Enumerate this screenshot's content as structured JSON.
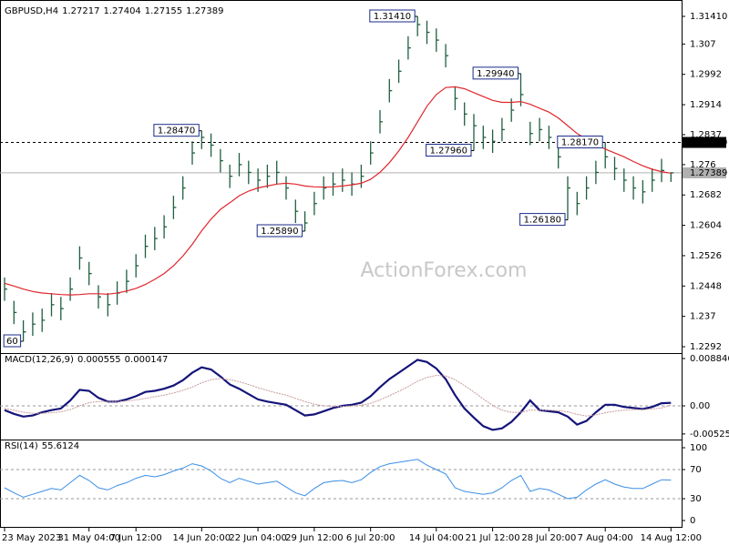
{
  "chart_data": [
    {
      "type": "ohlc",
      "title": "GBPUSD,H4",
      "header_values": [
        1.27217,
        1.27404,
        1.27155,
        1.27389
      ],
      "watermark": "ActionForex.com",
      "categories": [
        "23 May 2023",
        null,
        null,
        null,
        null,
        null,
        null,
        null,
        null,
        "31 May 04:00",
        null,
        null,
        null,
        null,
        "7 Jun 12:00",
        null,
        null,
        null,
        null,
        null,
        null,
        "14 Jun 20:00",
        null,
        null,
        null,
        null,
        null,
        "22 Jun 04:00",
        null,
        null,
        null,
        null,
        null,
        "29 Jun 12:00",
        null,
        null,
        null,
        null,
        null,
        "6 Jul 20:00",
        null,
        null,
        null,
        null,
        null,
        null,
        "14 Jul 04:00",
        null,
        null,
        null,
        null,
        null,
        "21 Jul 12:00",
        null,
        null,
        null,
        null,
        null,
        "28 Jul 20:00",
        null,
        null,
        null,
        null,
        null,
        "7 Aug 04:00",
        null,
        null,
        null,
        null,
        null,
        null,
        "14 Aug 12:00"
      ],
      "high": [
        1.247,
        1.241,
        1.236,
        1.238,
        1.239,
        1.243,
        1.242,
        1.247,
        1.255,
        1.251,
        1.245,
        1.243,
        1.246,
        1.249,
        1.253,
        1.258,
        1.26,
        1.263,
        1.268,
        1.273,
        1.282,
        1.2847,
        1.284,
        1.28,
        1.276,
        1.279,
        1.277,
        1.275,
        1.276,
        1.277,
        1.273,
        1.267,
        1.264,
        1.269,
        1.273,
        1.274,
        1.275,
        1.274,
        1.276,
        1.282,
        1.29,
        1.298,
        1.303,
        1.309,
        1.3141,
        1.313,
        1.311,
        1.307,
        1.296,
        1.292,
        1.289,
        1.286,
        1.285,
        1.288,
        1.293,
        1.2994,
        1.287,
        1.288,
        1.286,
        1.281,
        1.273,
        1.269,
        1.273,
        1.277,
        1.2817,
        1.278,
        1.275,
        1.273,
        1.272,
        1.275,
        1.2775,
        1.27404
      ],
      "low": [
        1.241,
        1.235,
        1.2306,
        1.232,
        1.233,
        1.237,
        1.236,
        1.241,
        1.249,
        1.245,
        1.239,
        1.237,
        1.24,
        1.243,
        1.247,
        1.252,
        1.254,
        1.257,
        1.262,
        1.267,
        1.276,
        1.28,
        1.278,
        1.274,
        1.27,
        1.273,
        1.271,
        1.269,
        1.27,
        1.271,
        1.267,
        1.261,
        1.2589,
        1.263,
        1.267,
        1.268,
        1.269,
        1.268,
        1.27,
        1.276,
        1.284,
        1.292,
        1.297,
        1.303,
        1.309,
        1.307,
        1.305,
        1.301,
        1.29,
        1.286,
        1.2796,
        1.28,
        1.279,
        1.282,
        1.287,
        1.291,
        1.281,
        1.282,
        1.28,
        1.275,
        1.2618,
        1.263,
        1.267,
        1.271,
        1.275,
        1.272,
        1.269,
        1.267,
        1.266,
        1.269,
        1.2715,
        1.27155
      ],
      "close": [
        1.244,
        1.238,
        1.233,
        1.235,
        1.236,
        1.24,
        1.239,
        1.244,
        1.252,
        1.248,
        1.242,
        1.24,
        1.243,
        1.246,
        1.25,
        1.255,
        1.257,
        1.26,
        1.265,
        1.27,
        1.279,
        1.283,
        1.281,
        1.277,
        1.273,
        1.276,
        1.274,
        1.272,
        1.273,
        1.274,
        1.27,
        1.264,
        1.261,
        1.266,
        1.27,
        1.271,
        1.272,
        1.271,
        1.273,
        1.279,
        1.287,
        1.295,
        1.3,
        1.306,
        1.312,
        1.31,
        1.308,
        1.304,
        1.293,
        1.289,
        1.286,
        1.283,
        1.282,
        1.285,
        1.29,
        1.294,
        1.284,
        1.285,
        1.283,
        1.278,
        1.27,
        1.266,
        1.27,
        1.274,
        1.278,
        1.275,
        1.272,
        1.27,
        1.269,
        1.272,
        1.2745,
        1.27389
      ],
      "color": "#1f5f3f",
      "series": [
        {
          "name": "MA",
          "color": "#e0262d",
          "values": [
            1.2455,
            1.2448,
            1.244,
            1.2434,
            1.243,
            1.2428,
            1.2426,
            1.2425,
            1.2426,
            1.2428,
            1.2428,
            1.2427,
            1.243,
            1.2435,
            1.2442,
            1.2452,
            1.2465,
            1.248,
            1.25,
            1.2525,
            1.2555,
            1.259,
            1.262,
            1.2645,
            1.2662,
            1.268,
            1.2692,
            1.27,
            1.2705,
            1.271,
            1.2712,
            1.271,
            1.2705,
            1.2703,
            1.2702,
            1.2703,
            1.2705,
            1.2708,
            1.2712,
            1.2722,
            1.274,
            1.2765,
            1.2795,
            1.283,
            1.287,
            1.291,
            1.294,
            1.2958,
            1.296,
            1.2955,
            1.2945,
            1.2935,
            1.2925,
            1.292,
            1.292,
            1.2922,
            1.2915,
            1.2905,
            1.2895,
            1.288,
            1.286,
            1.284,
            1.2825,
            1.2812,
            1.28,
            1.279,
            1.278,
            1.2768,
            1.2757,
            1.2748,
            1.2742,
            1.2738
          ]
        }
      ],
      "annotations": [
        {
          "value": 1.3141,
          "label": "1.31410"
        },
        {
          "value": 1.2994,
          "label": "1.29940"
        },
        {
          "value": 1.2847,
          "label": "1.28470"
        },
        {
          "value": 1.2817,
          "label": "1.28170"
        },
        {
          "value": 1.2796,
          "label": "1.27960"
        },
        {
          "value": 1.2618,
          "label": "1.26180"
        },
        {
          "value": 1.2589,
          "label": "1.25890"
        },
        {
          "value": 1.2306,
          "label": "60"
        }
      ],
      "levels": [
        {
          "value": 1.2817,
          "label": "1.28170",
          "style": "dashed",
          "color": "#000000"
        },
        {
          "value": 1.27389,
          "label": "1.27389",
          "style": "solid",
          "color": "#b0b0b0"
        }
      ],
      "ylim": [
        1.22756,
        1.31714
      ],
      "yticks": [
        {
          "value": 1.3141,
          "label": "1.31410"
        },
        1.307,
        1.2992,
        1.2914,
        1.2837,
        1.276,
        1.2682,
        1.2604,
        1.2526,
        1.2448,
        1.237,
        1.2292
      ]
    },
    {
      "type": "line",
      "title": "MACD(12,26,9)",
      "header_values": [
        0.000555,
        0.000147
      ],
      "series": [
        {
          "name": "MACD",
          "color": "#14147a",
          "width": 2.2,
          "values": [
            -0.0008,
            -0.0015,
            -0.002,
            -0.0018,
            -0.0012,
            -0.0008,
            -0.0005,
            0.001,
            0.003,
            0.0028,
            0.0015,
            0.0008,
            0.0008,
            0.0012,
            0.0018,
            0.0026,
            0.0028,
            0.0032,
            0.0038,
            0.0048,
            0.0062,
            0.0072,
            0.0068,
            0.0055,
            0.004,
            0.0032,
            0.0022,
            0.0012,
            0.0008,
            0.0005,
            0.0002,
            -0.0008,
            -0.0018,
            -0.0016,
            -0.001,
            -0.0004,
            0.0,
            0.0002,
            0.0006,
            0.0018,
            0.0035,
            0.005,
            0.0062,
            0.0074,
            0.0086,
            0.0082,
            0.007,
            0.005,
            0.002,
            -0.0005,
            -0.0022,
            -0.0038,
            -0.0045,
            -0.0042,
            -0.003,
            -0.0012,
            0.001,
            -0.0008,
            -0.001,
            -0.0012,
            -0.002,
            -0.0035,
            -0.0028,
            -0.0012,
            0.0002,
            0.0002,
            -0.0002,
            -0.0004,
            -0.0006,
            -0.0002,
            0.0005,
            0.000555
          ]
        },
        {
          "name": "Signal",
          "color": "#c89a9a",
          "width": 1,
          "values": [
            -0.0005,
            -0.0008,
            -0.0012,
            -0.0014,
            -0.0014,
            -0.0013,
            -0.0011,
            -0.0007,
            0.0,
            0.0006,
            0.0008,
            0.0008,
            0.0008,
            0.0009,
            0.0011,
            0.0014,
            0.0017,
            0.002,
            0.0024,
            0.0029,
            0.0035,
            0.0043,
            0.0049,
            0.0051,
            0.0049,
            0.0045,
            0.004,
            0.0034,
            0.0029,
            0.0024,
            0.002,
            0.0014,
            0.0008,
            0.0003,
            0.0,
            -0.0001,
            -0.0001,
            0.0,
            0.0001,
            0.0005,
            0.0011,
            0.0019,
            0.0027,
            0.0036,
            0.0046,
            0.0053,
            0.0057,
            0.0056,
            0.0049,
            0.0038,
            0.0026,
            0.0013,
            0.0001,
            -0.0008,
            -0.0012,
            -0.0012,
            -0.0008,
            -0.0008,
            -0.0008,
            -0.0009,
            -0.0011,
            -0.0016,
            -0.0019,
            -0.0017,
            -0.0013,
            -0.001,
            -0.0008,
            -0.0007,
            -0.0007,
            -0.0006,
            -0.0004,
            0.000147
          ]
        }
      ],
      "ylim": [
        -0.006295,
        0.009867
      ],
      "yticks": [
        0.008846,
        {
          "value": 0,
          "label": "0.00"
        },
        -0.005252
      ],
      "dashed_lines": [
        0
      ]
    },
    {
      "type": "line",
      "title": "RSI(14)",
      "header_values": [
        55.6124
      ],
      "series": [
        {
          "name": "RSI",
          "color": "#3a8ee6",
          "width": 1,
          "values": [
            45,
            38,
            32,
            36,
            40,
            44,
            42,
            52,
            62,
            55,
            45,
            42,
            48,
            52,
            58,
            62,
            60,
            63,
            68,
            72,
            78,
            75,
            68,
            58,
            52,
            58,
            54,
            50,
            52,
            54,
            46,
            38,
            34,
            44,
            52,
            54,
            55,
            52,
            56,
            66,
            74,
            78,
            80,
            82,
            84,
            76,
            70,
            64,
            45,
            40,
            38,
            36,
            38,
            45,
            55,
            62,
            40,
            44,
            42,
            36,
            30,
            32,
            42,
            50,
            56,
            50,
            46,
            44,
            44,
            50,
            56,
            55.6124
          ]
        }
      ],
      "ylim": [
        -10,
        111.25
      ],
      "yticks": [
        100,
        70,
        30,
        0
      ],
      "dashed_lines": [
        70,
        30
      ]
    }
  ]
}
